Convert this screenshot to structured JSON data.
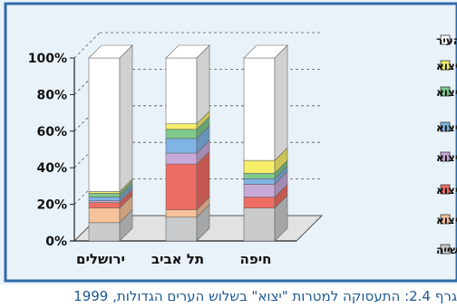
{
  "caption": "גרף 2.4: התעסוקה למטרות \"יצוא\" בשלוש הערים הגדולות, 1999",
  "colors": {
    "frame": "#2e6aa8",
    "background": "#e9f2f9",
    "caption": "#1d5a96"
  },
  "chart_data": {
    "type": "bar",
    "stacked": true,
    "three_d": true,
    "title": "",
    "xlabel": "",
    "ylabel": "",
    "ylim": [
      0,
      100
    ],
    "y_ticks": [
      "0%",
      "20%",
      "40%",
      "60%",
      "80%",
      "100%"
    ],
    "categories": [
      "ירושלים",
      "תל אביב",
      "חיפה"
    ],
    "legend_position": "right",
    "series": [
      {
        "name": "תעשייה",
        "color": "#c9cbcd",
        "values": [
          10,
          13,
          18
        ]
      },
      {
        "name": "מינהל ציבורי ליצוא",
        "color": "#f7c39b",
        "values": [
          8,
          4,
          0
        ]
      },
      {
        "name": "שירותים עסקיים ליצוא",
        "color": "#ee6d63",
        "values": [
          3,
          25,
          6
        ]
      },
      {
        "name": "שירותי מסחר ליצוא",
        "color": "#c8aad9",
        "values": [
          1,
          6,
          7
        ]
      },
      {
        "name": "שירותי תרבות ואירוח ליצוא",
        "color": "#7fb4e4",
        "values": [
          2,
          8,
          3
        ]
      },
      {
        "name": "שירותי תחבורה ליצוא",
        "color": "#7fc98c",
        "values": [
          2,
          5,
          3
        ]
      },
      {
        "name": "שירותים אחרים ליצוא",
        "color": "#f7ef6a",
        "values": [
          1,
          3,
          7
        ]
      },
      {
        "name": "התעסוקה בשירות תושבי העיר",
        "color": "#ffffff",
        "values": [
          73,
          36,
          56
        ]
      }
    ]
  }
}
